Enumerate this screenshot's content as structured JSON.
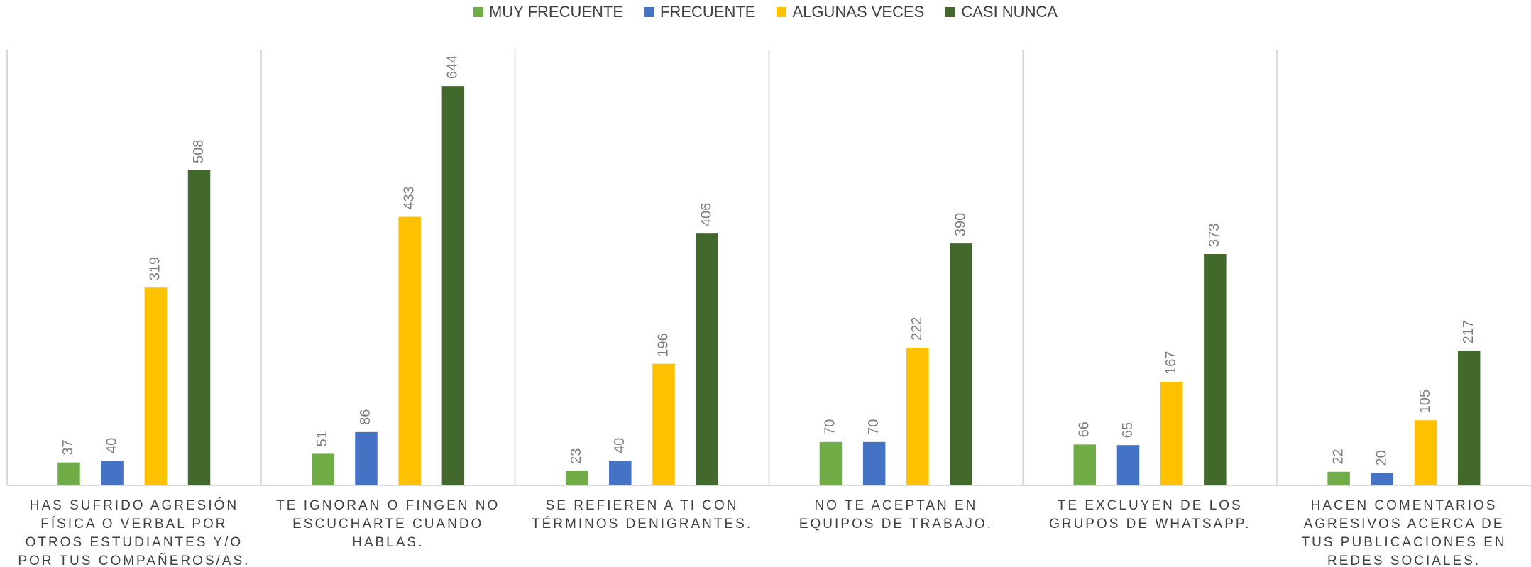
{
  "chart_data": {
    "type": "bar",
    "categories": [
      "HAS SUFRIDO AGRESIÓN FÍSICA O VERBAL POR OTROS ESTUDIANTES Y/O POR TUS COMPAÑEROS/AS.",
      "TE IGNORAN O FINGEN NO ESCUCHARTE CUANDO HABLAS.",
      "SE REFIEREN A TI CON TÉRMINOS DENIGRANTES.",
      "NO TE ACEPTAN EN EQUIPOS DE TRABAJO.",
      "TE EXCLUYEN DE LOS GRUPOS DE WHATSAPP.",
      "HACEN COMENTARIOS AGRESIVOS ACERCA DE TUS PUBLICACIONES EN REDES SOCIALES."
    ],
    "series": [
      {
        "name": "MUY FRECUENTE",
        "color": "#70ad47",
        "values": [
          37,
          51,
          23,
          70,
          66,
          22
        ]
      },
      {
        "name": "FRECUENTE",
        "color": "#4472c4",
        "values": [
          40,
          86,
          40,
          70,
          65,
          20
        ]
      },
      {
        "name": "ALGUNAS VECES",
        "color": "#ffc000",
        "values": [
          319,
          433,
          196,
          222,
          167,
          105
        ]
      },
      {
        "name": "CASI NUNCA",
        "color": "#43682b",
        "values": [
          508,
          644,
          406,
          390,
          373,
          217
        ]
      }
    ],
    "legend": "top"
  }
}
